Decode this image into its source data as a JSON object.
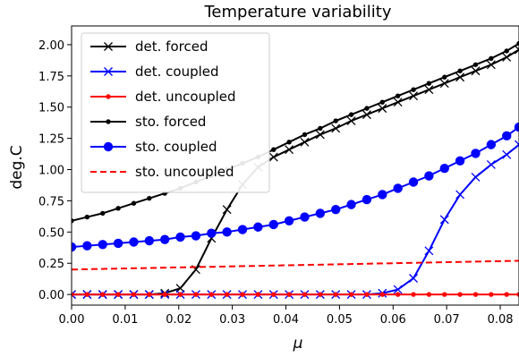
{
  "chart_data": {
    "type": "line",
    "title": "Temperature variability",
    "xlabel": "μ",
    "ylabel": "deg.C",
    "xlim": [
      0.0,
      0.0835
    ],
    "ylim": [
      -0.085,
      2.15
    ],
    "xticks": [
      "0.00",
      "0.01",
      "0.02",
      "0.03",
      "0.04",
      "0.05",
      "0.06",
      "0.07",
      "0.08"
    ],
    "xtick_values": [
      0.0,
      0.01,
      0.02,
      0.03,
      0.04,
      0.05,
      0.06,
      0.07,
      0.08
    ],
    "yticks": [
      "0.00",
      "0.25",
      "0.50",
      "0.75",
      "1.00",
      "1.25",
      "1.50",
      "1.75",
      "2.00"
    ],
    "ytick_values": [
      0.0,
      0.25,
      0.5,
      0.75,
      1.0,
      1.25,
      1.5,
      1.75,
      2.0
    ],
    "legend_position": "top-left",
    "grid": false,
    "series": [
      {
        "name": "det. forced",
        "color": "#000000",
        "marker": "x",
        "linestyle": "solid",
        "x": [
          0.0,
          0.0029,
          0.0058,
          0.0087,
          0.0116,
          0.0145,
          0.0174,
          0.0203,
          0.0232,
          0.0261,
          0.029,
          0.0319,
          0.0348,
          0.0377,
          0.0406,
          0.0435,
          0.0464,
          0.0493,
          0.0522,
          0.0551,
          0.058,
          0.0609,
          0.0638,
          0.0667,
          0.0696,
          0.0725,
          0.0754,
          0.0783,
          0.0812,
          0.0835
        ],
        "y": [
          0.0,
          0.0,
          0.0,
          0.0,
          0.0,
          0.0,
          0.01,
          0.05,
          0.2,
          0.45,
          0.68,
          0.88,
          1.02,
          1.1,
          1.16,
          1.22,
          1.28,
          1.33,
          1.39,
          1.44,
          1.49,
          1.54,
          1.59,
          1.64,
          1.69,
          1.74,
          1.79,
          1.84,
          1.9,
          1.96
        ]
      },
      {
        "name": "det. coupled",
        "color": "#0000ff",
        "marker": "x",
        "linestyle": "solid",
        "x": [
          0.0,
          0.0029,
          0.0058,
          0.0087,
          0.0116,
          0.0145,
          0.0174,
          0.0203,
          0.0232,
          0.0261,
          0.029,
          0.0319,
          0.0348,
          0.0377,
          0.0406,
          0.0435,
          0.0464,
          0.0493,
          0.0522,
          0.0551,
          0.058,
          0.0609,
          0.0638,
          0.0667,
          0.0696,
          0.0725,
          0.0754,
          0.0783,
          0.0812,
          0.0835
        ],
        "y": [
          0.0,
          0.0,
          0.0,
          0.0,
          0.0,
          0.0,
          0.0,
          0.0,
          0.0,
          0.0,
          0.0,
          0.0,
          0.0,
          0.0,
          0.0,
          0.0,
          0.0,
          0.0,
          0.0,
          0.0,
          0.01,
          0.04,
          0.13,
          0.35,
          0.6,
          0.8,
          0.94,
          1.04,
          1.12,
          1.2
        ]
      },
      {
        "name": "det. uncoupled",
        "color": "#ff0000",
        "marker": "dot",
        "linestyle": "solid",
        "x": [
          0.0,
          0.0029,
          0.0058,
          0.0087,
          0.0116,
          0.0145,
          0.0174,
          0.0203,
          0.0232,
          0.0261,
          0.029,
          0.0319,
          0.0348,
          0.0377,
          0.0406,
          0.0435,
          0.0464,
          0.0493,
          0.0522,
          0.0551,
          0.058,
          0.0609,
          0.0638,
          0.0667,
          0.0696,
          0.0725,
          0.0754,
          0.0783,
          0.0812,
          0.0835
        ],
        "y": [
          0.0,
          0.0,
          0.0,
          0.0,
          0.0,
          0.0,
          0.0,
          0.0,
          0.0,
          0.0,
          0.0,
          0.0,
          0.0,
          0.0,
          0.0,
          0.0,
          0.0,
          0.0,
          0.0,
          0.0,
          0.0,
          0.0,
          0.0,
          0.0,
          0.0,
          0.0,
          0.0,
          0.0,
          0.0,
          0.0
        ]
      },
      {
        "name": "sto. forced",
        "color": "#000000",
        "marker": "dot",
        "linestyle": "solid",
        "x": [
          0.0,
          0.0029,
          0.0058,
          0.0087,
          0.0116,
          0.0145,
          0.0174,
          0.0203,
          0.0232,
          0.0261,
          0.029,
          0.0319,
          0.0348,
          0.0377,
          0.0406,
          0.0435,
          0.0464,
          0.0493,
          0.0522,
          0.0551,
          0.058,
          0.0609,
          0.0638,
          0.0667,
          0.0696,
          0.0725,
          0.0754,
          0.0783,
          0.0812,
          0.0835
        ],
        "y": [
          0.59,
          0.62,
          0.65,
          0.69,
          0.73,
          0.77,
          0.81,
          0.85,
          0.9,
          0.95,
          1.0,
          1.05,
          1.1,
          1.16,
          1.22,
          1.28,
          1.33,
          1.39,
          1.44,
          1.49,
          1.54,
          1.59,
          1.64,
          1.69,
          1.74,
          1.79,
          1.84,
          1.89,
          1.95,
          2.01
        ]
      },
      {
        "name": "sto. coupled",
        "color": "#0000ff",
        "marker": "circle",
        "linestyle": "solid",
        "x": [
          0.0,
          0.0029,
          0.0058,
          0.0087,
          0.0116,
          0.0145,
          0.0174,
          0.0203,
          0.0232,
          0.0261,
          0.029,
          0.0319,
          0.0348,
          0.0377,
          0.0406,
          0.0435,
          0.0464,
          0.0493,
          0.0522,
          0.0551,
          0.058,
          0.0609,
          0.0638,
          0.0667,
          0.0696,
          0.0725,
          0.0754,
          0.0783,
          0.0812,
          0.0835
        ],
        "y": [
          0.38,
          0.39,
          0.4,
          0.41,
          0.42,
          0.43,
          0.44,
          0.46,
          0.47,
          0.49,
          0.5,
          0.52,
          0.54,
          0.56,
          0.59,
          0.62,
          0.65,
          0.68,
          0.72,
          0.76,
          0.8,
          0.85,
          0.9,
          0.95,
          1.01,
          1.07,
          1.13,
          1.2,
          1.27,
          1.34
        ]
      },
      {
        "name": "sto. uncoupled",
        "color": "#ff0000",
        "marker": "none",
        "linestyle": "dashed",
        "x": [
          0.0,
          0.0835
        ],
        "y": [
          0.2,
          0.27
        ]
      }
    ]
  }
}
